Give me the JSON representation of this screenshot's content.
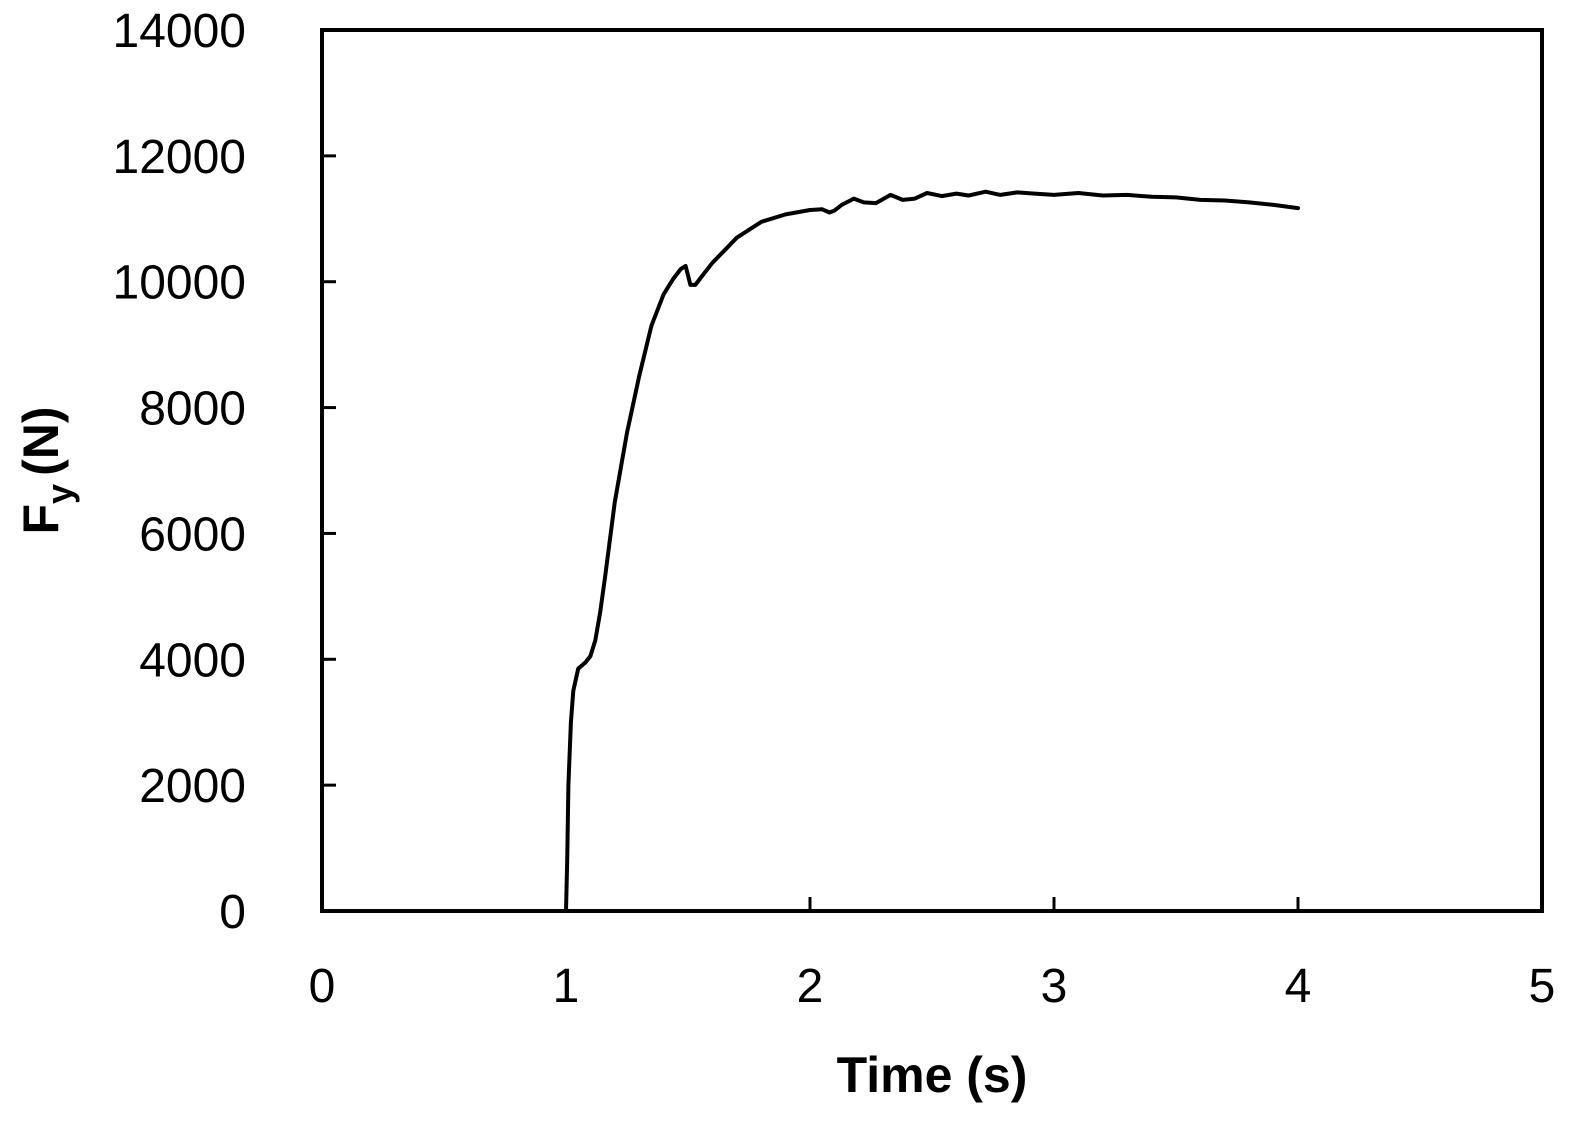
{
  "chart_data": {
    "type": "line",
    "title": "",
    "xlabel": "Time (s)",
    "ylabel": {
      "main": "F",
      "sub": "y",
      "unit": "(N)"
    },
    "xlim": [
      0,
      5
    ],
    "ylim": [
      0,
      14000
    ],
    "xticks": [
      0,
      1,
      2,
      3,
      4,
      5
    ],
    "yticks": [
      0,
      2000,
      4000,
      6000,
      8000,
      10000,
      12000,
      14000
    ],
    "grid": false,
    "legend": "none",
    "line_color": "#000000",
    "series": [
      {
        "x": [
          0,
          0.5,
          1.0,
          1.005,
          1.01,
          1.02,
          1.03,
          1.05,
          1.08,
          1.1,
          1.12,
          1.14,
          1.16,
          1.18,
          1.2,
          1.25,
          1.3,
          1.35,
          1.4,
          1.44,
          1.47,
          1.49,
          1.5,
          1.51,
          1.53,
          1.56,
          1.6,
          1.65,
          1.7,
          1.8,
          1.9,
          2.0,
          2.05,
          2.08,
          2.1,
          2.13,
          2.18,
          2.22,
          2.27,
          2.33,
          2.38,
          2.43,
          2.48,
          2.54,
          2.6,
          2.65,
          2.72,
          2.78,
          2.85,
          2.92,
          3.0,
          3.1,
          3.2,
          3.3,
          3.4,
          3.5,
          3.6,
          3.7,
          3.8,
          3.9,
          4.0
        ],
        "y": [
          0,
          0,
          0,
          800,
          2000,
          3000,
          3500,
          3850,
          3950,
          4050,
          4300,
          4750,
          5300,
          5900,
          6500,
          7600,
          8500,
          9300,
          9800,
          10050,
          10200,
          10250,
          10100,
          9950,
          9950,
          10100,
          10300,
          10500,
          10700,
          10950,
          11070,
          11140,
          11150,
          11100,
          11130,
          11220,
          11320,
          11260,
          11250,
          11380,
          11300,
          11320,
          11410,
          11360,
          11400,
          11370,
          11430,
          11380,
          11420,
          11400,
          11380,
          11410,
          11370,
          11380,
          11350,
          11340,
          11300,
          11290,
          11260,
          11220,
          11170
        ]
      }
    ]
  }
}
